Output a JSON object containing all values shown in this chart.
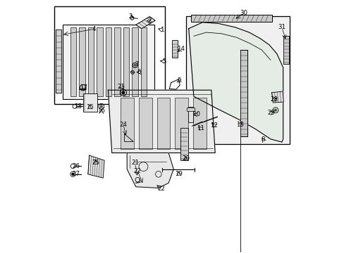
{
  "bg_color": "#ffffff",
  "line_color": "#000000",
  "fill_light": "#eeeeee",
  "fill_mid": "#d8d8d8",
  "fill_dark": "#c0c0c0"
}
